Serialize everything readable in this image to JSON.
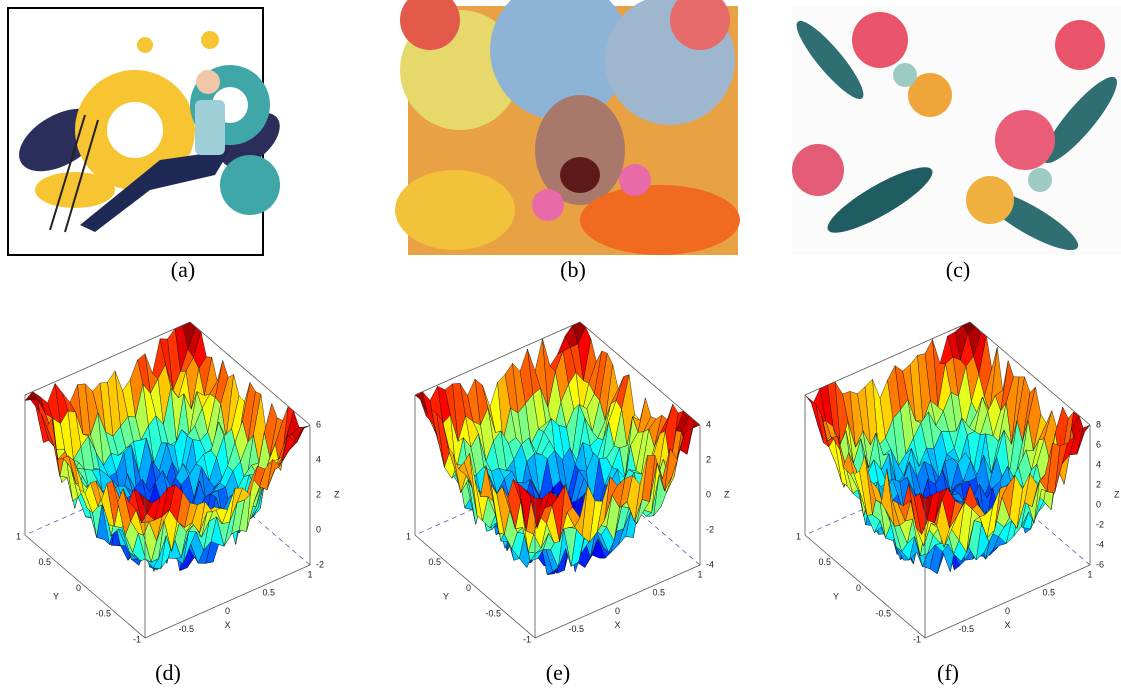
{
  "panels": [
    {
      "caption": "(a)"
    },
    {
      "caption": "(b)"
    },
    {
      "caption": "(c)"
    },
    {
      "caption": "(d)",
      "x_label": "X",
      "y_label": "Y",
      "z_label": "Z",
      "x_ticks": [
        "-0.5",
        "0",
        "0.5",
        "1"
      ],
      "y_ticks": [
        "1",
        "0.5",
        "0",
        "-0.5",
        "-1"
      ],
      "z_ticks": [
        "6",
        "4",
        "2",
        "0",
        "-2"
      ]
    },
    {
      "caption": "(e)",
      "x_label": "X",
      "y_label": "Y",
      "z_label": "Z",
      "x_ticks": [
        "-0.5",
        "0",
        "0.5",
        "1"
      ],
      "y_ticks": [
        "1",
        "0.5",
        "0",
        "-0.5",
        "-1"
      ],
      "z_ticks": [
        "4",
        "2",
        "0",
        "-2",
        "-4"
      ]
    },
    {
      "caption": "(f)",
      "x_label": "X",
      "y_label": "Y",
      "z_label": "Z",
      "x_ticks": [
        "-0.5",
        "0",
        "0.5",
        "1"
      ],
      "y_ticks": [
        "1",
        "0.5",
        "0",
        "-0.5",
        "-1"
      ],
      "z_ticks": [
        "8",
        "6",
        "4",
        "2",
        "0",
        "-2",
        "-4",
        "-6"
      ]
    }
  ]
}
